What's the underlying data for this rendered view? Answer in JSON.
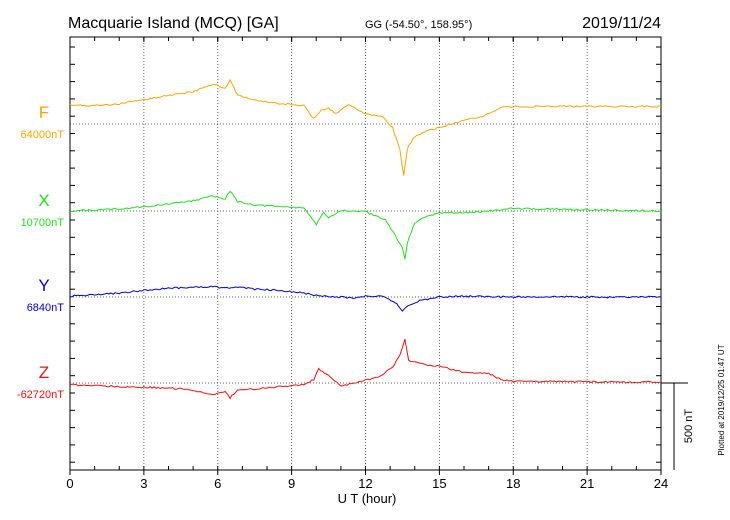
{
  "header": {
    "station": "Macquarie Island (MCQ)  [GA]",
    "coords": "GG (-54.50°, 158.95°)",
    "date": "2019/11/24"
  },
  "plotted_note": "Plotted at 2019/12/25 01:47 UT",
  "scale_label": "500 nT",
  "chart_data": {
    "type": "line",
    "title": "Macquarie Island (MCQ)  [GA]",
    "xlabel": "U T (hour)",
    "ylabel": "",
    "xlim": [
      0,
      24
    ],
    "x_ticks": [
      "0",
      "3",
      "6",
      "9",
      "12",
      "15",
      "18",
      "21",
      "24"
    ],
    "grid": true,
    "scale_nT": 500,
    "series": [
      {
        "name": "F",
        "baseline_label": "64000nT",
        "color": "#f0a800",
        "points": [
          [
            0,
            64110
          ],
          [
            1,
            64105
          ],
          [
            2,
            64115
          ],
          [
            3,
            64140
          ],
          [
            4,
            64165
          ],
          [
            5,
            64185
          ],
          [
            5.8,
            64230
          ],
          [
            6.3,
            64205
          ],
          [
            6.5,
            64255
          ],
          [
            6.8,
            64165
          ],
          [
            7.5,
            64135
          ],
          [
            8.5,
            64118
          ],
          [
            9.5,
            64105
          ],
          [
            9.9,
            64030
          ],
          [
            10.2,
            64080
          ],
          [
            10.5,
            64090
          ],
          [
            10.8,
            64060
          ],
          [
            11.3,
            64110
          ],
          [
            12,
            64060
          ],
          [
            12.7,
            64040
          ],
          [
            13.1,
            63980
          ],
          [
            13.4,
            63850
          ],
          [
            13.55,
            63700
          ],
          [
            13.7,
            63860
          ],
          [
            14,
            63930
          ],
          [
            14.5,
            63960
          ],
          [
            15,
            63980
          ],
          [
            16,
            64020
          ],
          [
            16.8,
            64045
          ],
          [
            17.2,
            64075
          ],
          [
            17.6,
            64098
          ],
          [
            18,
            64100
          ],
          [
            20,
            64102
          ],
          [
            22,
            64101
          ],
          [
            24,
            64100
          ]
        ]
      },
      {
        "name": "X",
        "baseline_label": "10700nT",
        "color": "#22dd22",
        "points": [
          [
            0,
            10700
          ],
          [
            1,
            10705
          ],
          [
            2,
            10712
          ],
          [
            3,
            10725
          ],
          [
            4,
            10740
          ],
          [
            5,
            10760
          ],
          [
            5.8,
            10785
          ],
          [
            6.3,
            10770
          ],
          [
            6.5,
            10815
          ],
          [
            6.8,
            10755
          ],
          [
            7.5,
            10735
          ],
          [
            8.5,
            10725
          ],
          [
            9.5,
            10720
          ],
          [
            10,
            10620
          ],
          [
            10.3,
            10690
          ],
          [
            10.5,
            10660
          ],
          [
            11,
            10705
          ],
          [
            12,
            10695
          ],
          [
            12.8,
            10650
          ],
          [
            13.2,
            10560
          ],
          [
            13.5,
            10490
          ],
          [
            13.6,
            10420
          ],
          [
            13.7,
            10520
          ],
          [
            14,
            10630
          ],
          [
            14.5,
            10670
          ],
          [
            15,
            10690
          ],
          [
            16,
            10690
          ],
          [
            17,
            10700
          ],
          [
            18,
            10715
          ],
          [
            20,
            10710
          ],
          [
            22,
            10705
          ],
          [
            24,
            10700
          ]
        ]
      },
      {
        "name": "Y",
        "baseline_label": "6840nT",
        "color": "#0000cc",
        "points": [
          [
            0,
            6845
          ],
          [
            1,
            6852
          ],
          [
            2,
            6862
          ],
          [
            3,
            6878
          ],
          [
            4,
            6890
          ],
          [
            5,
            6896
          ],
          [
            5.8,
            6900
          ],
          [
            6.3,
            6890
          ],
          [
            6.8,
            6898
          ],
          [
            7.5,
            6885
          ],
          [
            8.5,
            6878
          ],
          [
            9.5,
            6862
          ],
          [
            10,
            6850
          ],
          [
            10.5,
            6840
          ],
          [
            11,
            6840
          ],
          [
            11.5,
            6832
          ],
          [
            12,
            6845
          ],
          [
            12.7,
            6842
          ],
          [
            13.2,
            6810
          ],
          [
            13.5,
            6760
          ],
          [
            13.7,
            6790
          ],
          [
            14.2,
            6820
          ],
          [
            15,
            6840
          ],
          [
            16,
            6845
          ],
          [
            17,
            6842
          ],
          [
            18,
            6840
          ],
          [
            20,
            6842
          ],
          [
            22,
            6838
          ],
          [
            24,
            6840
          ]
        ]
      },
      {
        "name": "Z",
        "baseline_label": "-62720nT",
        "color": "#ee1111",
        "points": [
          [
            0,
            -62730
          ],
          [
            1,
            -62735
          ],
          [
            2,
            -62740
          ],
          [
            3,
            -62745
          ],
          [
            4,
            -62748
          ],
          [
            5,
            -62760
          ],
          [
            5.8,
            -62790
          ],
          [
            6.3,
            -62770
          ],
          [
            6.5,
            -62805
          ],
          [
            6.8,
            -62760
          ],
          [
            7.5,
            -62755
          ],
          [
            8.5,
            -62740
          ],
          [
            9.5,
            -62730
          ],
          [
            9.9,
            -62700
          ],
          [
            10.1,
            -62640
          ],
          [
            10.5,
            -62675
          ],
          [
            11,
            -62740
          ],
          [
            11.5,
            -62720
          ],
          [
            12,
            -62705
          ],
          [
            12.6,
            -62680
          ],
          [
            13.1,
            -62630
          ],
          [
            13.4,
            -62560
          ],
          [
            13.6,
            -62470
          ],
          [
            13.75,
            -62590
          ],
          [
            14.3,
            -62610
          ],
          [
            15,
            -62625
          ],
          [
            16,
            -62660
          ],
          [
            17,
            -62665
          ],
          [
            17.5,
            -62700
          ],
          [
            18,
            -62710
          ],
          [
            20,
            -62712
          ],
          [
            22,
            -62715
          ],
          [
            24,
            -62715
          ]
        ]
      }
    ]
  }
}
